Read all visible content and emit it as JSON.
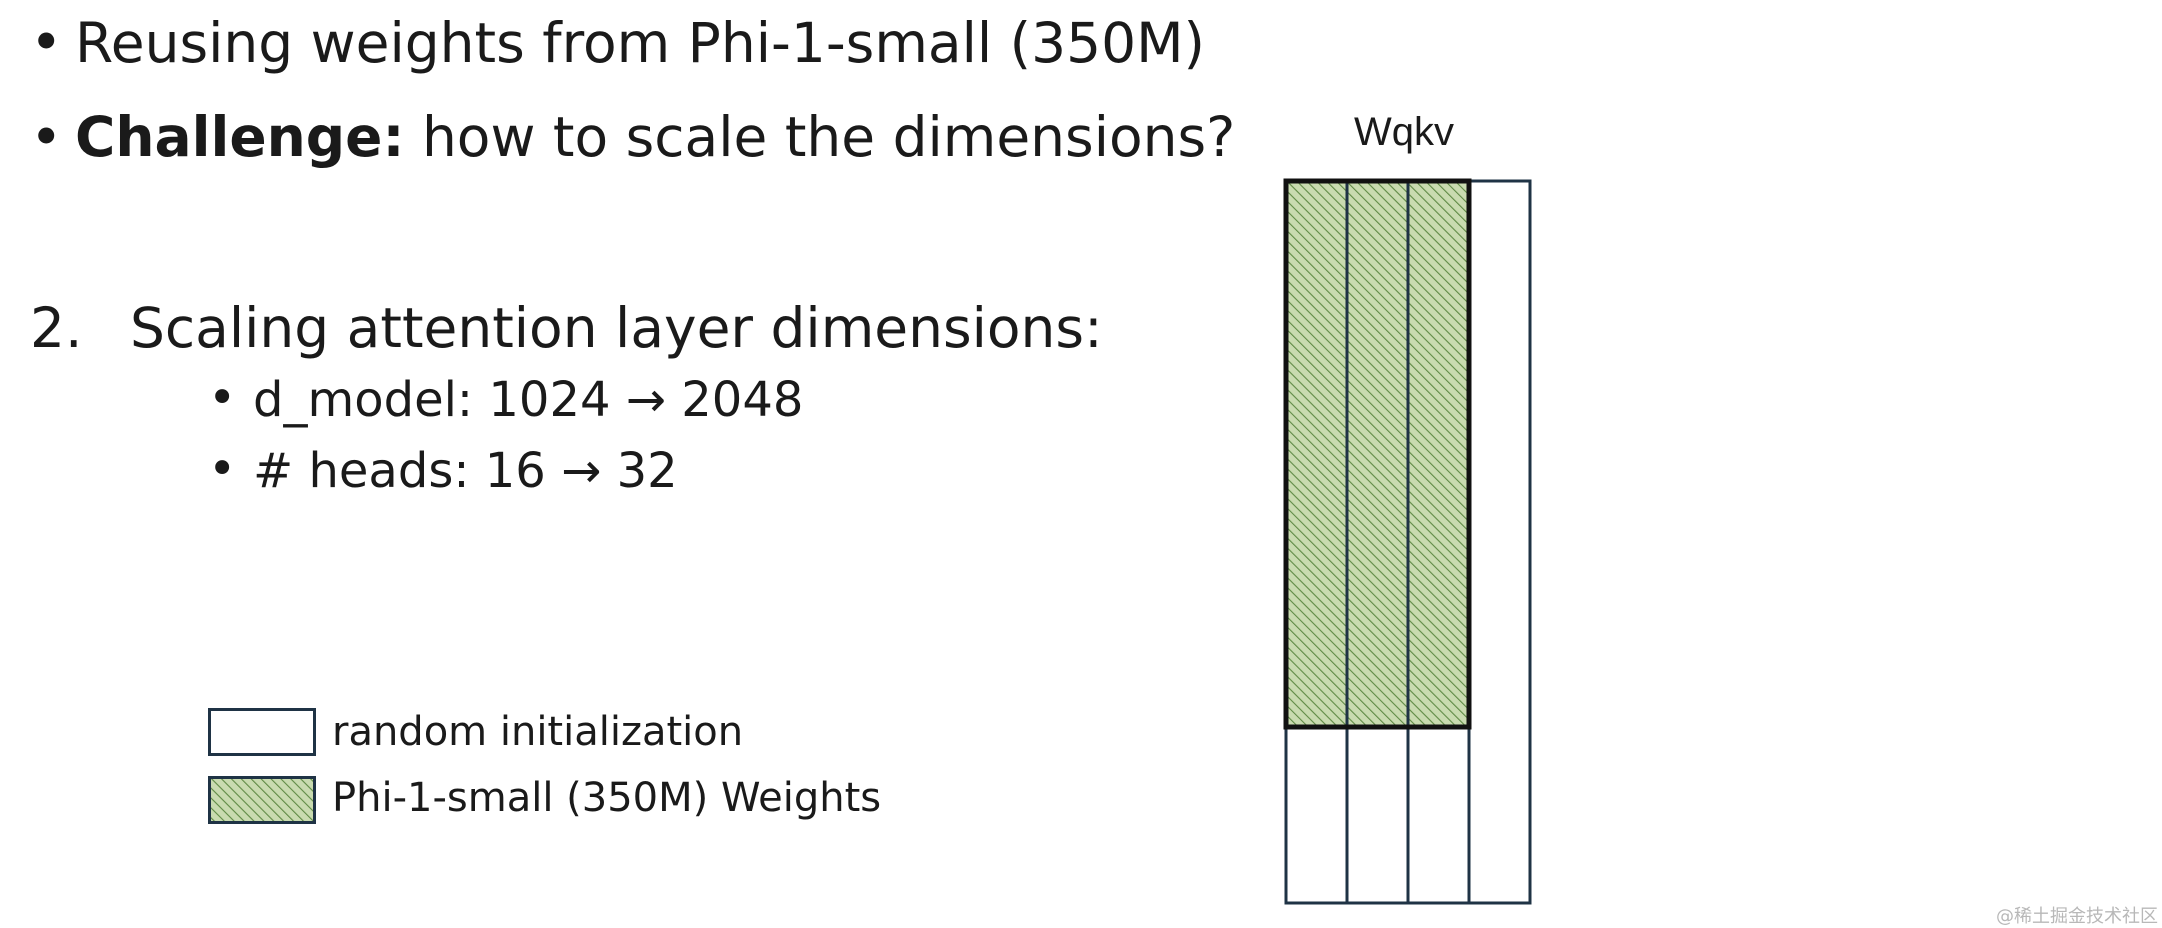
{
  "bullets": [
    {
      "text": "Reusing weights from Phi-1-small (350M)"
    },
    {
      "bold": "Challenge:",
      "text": " how to scale the dimensions?"
    }
  ],
  "section": {
    "number": "2.",
    "title": "Scaling attention layer dimensions:",
    "items": [
      {
        "text": "d_model: 1024 → 2048"
      },
      {
        "text": "# heads: 16 → 32"
      }
    ]
  },
  "legend": [
    {
      "label": "random initialization",
      "style": "empty"
    },
    {
      "label": "Phi-1-small (350M) Weights",
      "style": "hatched"
    }
  ],
  "matrix": {
    "title": "Wqkv",
    "columns": 4,
    "pretrained_columns": 3,
    "pretrained_fraction_of_height": 0.756
  },
  "colors": {
    "hatch_fill": "#c9dbb0",
    "hatch_line": "#5f8a45",
    "border": "#1f3345",
    "thick_border": "#111111"
  },
  "watermark": "@稀土掘金技术社区"
}
